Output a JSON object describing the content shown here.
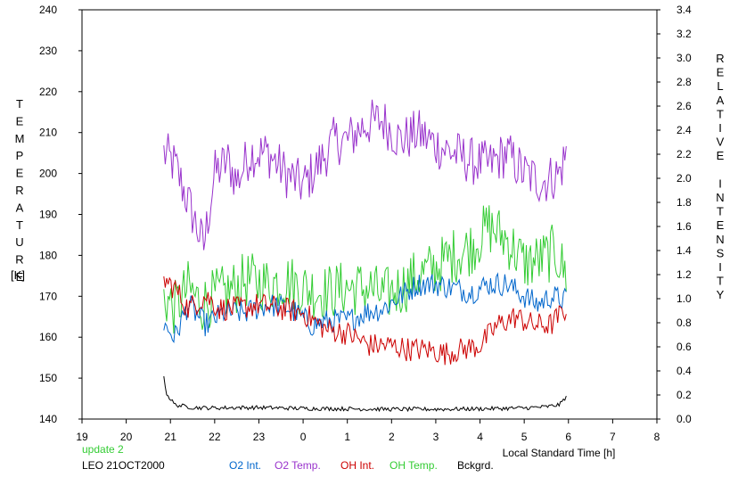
{
  "chart_data": {
    "type": "line",
    "y_left_label": "TEMPERATURE",
    "y_left_unit": "[K]",
    "y_right_label": "RELATIVE INTENSITY",
    "x_label": "Local Standard Time [h]",
    "x_ticks": [
      "19",
      "20",
      "21",
      "22",
      "23",
      "0",
      "1",
      "2",
      "3",
      "4",
      "5",
      "6",
      "7",
      "8"
    ],
    "x_range": [
      19,
      32
    ],
    "y_left_range": [
      140,
      240
    ],
    "y_left_ticks": [
      140,
      150,
      160,
      170,
      180,
      190,
      200,
      210,
      220,
      230,
      240
    ],
    "y_right_range": [
      0.0,
      3.4
    ],
    "y_right_ticks": [
      "0.0",
      "0.2",
      "0.4",
      "0.6",
      "0.8",
      "1.0",
      "1.2",
      "1.4",
      "1.6",
      "1.8",
      "2.0",
      "2.2",
      "2.4",
      "2.6",
      "2.8",
      "3.0",
      "3.2",
      "3.4"
    ],
    "grid": false,
    "series": [
      {
        "name": "O2 Temp.",
        "color": "#9933cc",
        "axis": "left",
        "noise": 6,
        "points": [
          [
            20.85,
            205
          ],
          [
            21.1,
            202
          ],
          [
            21.5,
            190
          ],
          [
            21.75,
            182
          ],
          [
            22.0,
            200
          ],
          [
            22.3,
            203
          ],
          [
            22.5,
            198
          ],
          [
            22.8,
            205
          ],
          [
            23.2,
            205
          ],
          [
            23.6,
            200
          ],
          [
            24.0,
            197
          ],
          [
            24.4,
            203
          ],
          [
            24.7,
            208
          ],
          [
            25.0,
            208
          ],
          [
            25.4,
            212
          ],
          [
            25.8,
            213
          ],
          [
            26.2,
            208
          ],
          [
            26.6,
            210
          ],
          [
            27.0,
            207
          ],
          [
            27.4,
            205
          ],
          [
            27.8,
            203
          ],
          [
            28.2,
            202
          ],
          [
            28.6,
            205
          ],
          [
            29.0,
            200
          ],
          [
            29.4,
            198
          ],
          [
            29.8,
            200
          ],
          [
            29.95,
            205
          ]
        ]
      },
      {
        "name": "OH Temp.",
        "color": "#33cc33",
        "axis": "left",
        "noise": 7,
        "points": [
          [
            20.85,
            170
          ],
          [
            21.1,
            167
          ],
          [
            21.4,
            172
          ],
          [
            21.7,
            168
          ],
          [
            22.0,
            170
          ],
          [
            22.3,
            171
          ],
          [
            22.7,
            174
          ],
          [
            23.2,
            173
          ],
          [
            23.6,
            174
          ],
          [
            24.0,
            172
          ],
          [
            24.5,
            171
          ],
          [
            25.0,
            172
          ],
          [
            25.5,
            172
          ],
          [
            25.8,
            170
          ],
          [
            26.2,
            172
          ],
          [
            26.6,
            175
          ],
          [
            27.0,
            177
          ],
          [
            27.4,
            180
          ],
          [
            27.8,
            182
          ],
          [
            28.2,
            187
          ],
          [
            28.6,
            184
          ],
          [
            29.0,
            178
          ],
          [
            29.4,
            179
          ],
          [
            29.7,
            181
          ],
          [
            29.95,
            175
          ]
        ]
      },
      {
        "name": "O2 Int.",
        "color": "#0066cc",
        "axis": "left",
        "noise": 3,
        "points": [
          [
            20.85,
            163
          ],
          [
            21.1,
            160
          ],
          [
            21.4,
            168
          ],
          [
            21.8,
            163
          ],
          [
            22.2,
            166
          ],
          [
            22.7,
            166
          ],
          [
            23.2,
            168
          ],
          [
            23.7,
            167
          ],
          [
            24.2,
            163
          ],
          [
            24.6,
            164
          ],
          [
            25.0,
            164
          ],
          [
            25.4,
            166
          ],
          [
            25.8,
            167
          ],
          [
            26.2,
            170
          ],
          [
            26.6,
            173
          ],
          [
            27.0,
            173
          ],
          [
            27.4,
            172
          ],
          [
            27.8,
            171
          ],
          [
            28.2,
            173
          ],
          [
            28.6,
            173
          ],
          [
            29.0,
            170
          ],
          [
            29.3,
            168
          ],
          [
            29.6,
            170
          ],
          [
            29.95,
            169
          ]
        ]
      },
      {
        "name": "OH Int.",
        "color": "#cc0000",
        "axis": "left",
        "noise": 3,
        "points": [
          [
            20.85,
            174
          ],
          [
            21.1,
            172
          ],
          [
            21.4,
            167
          ],
          [
            21.8,
            170
          ],
          [
            22.1,
            167
          ],
          [
            22.5,
            167
          ],
          [
            23.0,
            168
          ],
          [
            23.5,
            167
          ],
          [
            24.0,
            166
          ],
          [
            24.5,
            162
          ],
          [
            25.0,
            161
          ],
          [
            25.5,
            158
          ],
          [
            26.0,
            158
          ],
          [
            26.4,
            157
          ],
          [
            26.8,
            157
          ],
          [
            27.2,
            156
          ],
          [
            27.6,
            157
          ],
          [
            28.0,
            158
          ],
          [
            28.4,
            163
          ],
          [
            28.8,
            165
          ],
          [
            29.2,
            163
          ],
          [
            29.6,
            163
          ],
          [
            29.95,
            167
          ]
        ]
      },
      {
        "name": "Bckgrd.",
        "color": "#000000",
        "axis": "left",
        "noise": 0.5,
        "points": [
          [
            20.85,
            150
          ],
          [
            20.92,
            146
          ],
          [
            21.1,
            143.5
          ],
          [
            21.5,
            142.8
          ],
          [
            22.0,
            142.7
          ],
          [
            22.5,
            142.8
          ],
          [
            23.0,
            142.8
          ],
          [
            23.5,
            142.7
          ],
          [
            24.0,
            142.6
          ],
          [
            25.0,
            142.5
          ],
          [
            26.0,
            142.4
          ],
          [
            27.0,
            142.4
          ],
          [
            28.0,
            142.5
          ],
          [
            29.0,
            142.7
          ],
          [
            29.5,
            143
          ],
          [
            29.8,
            143.5
          ],
          [
            29.95,
            145.5
          ]
        ]
      }
    ],
    "update_note": "update 2",
    "station": "LEO 21OCT2000"
  }
}
